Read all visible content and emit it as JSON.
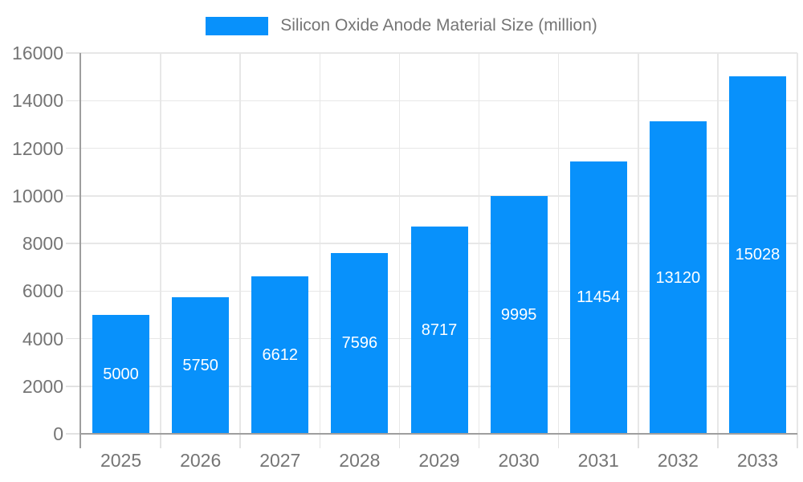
{
  "chart_data": {
    "type": "bar",
    "series_name": "Silicon Oxide Anode Material Size (million)",
    "categories": [
      "2025",
      "2026",
      "2027",
      "2028",
      "2029",
      "2030",
      "2031",
      "2032",
      "2033"
    ],
    "values": [
      5000,
      5750,
      6612,
      7596,
      8717,
      9995,
      11454,
      13120,
      15028
    ],
    "title": "",
    "xlabel": "",
    "ylabel": "",
    "ylim": [
      0,
      16000
    ],
    "yticks": [
      0,
      2000,
      4000,
      6000,
      8000,
      10000,
      12000,
      14000,
      16000
    ],
    "grid": true,
    "legend_position": "top",
    "bar_value_labels_inside": true
  },
  "colors": {
    "bar": "#0891fb",
    "bar_label": "#ffffff",
    "axis_text": "#757575",
    "axis_line": "#9e9e9e",
    "gridline": "#e7e7e7",
    "tick": "#e2e2e2",
    "background": "#ffffff"
  }
}
